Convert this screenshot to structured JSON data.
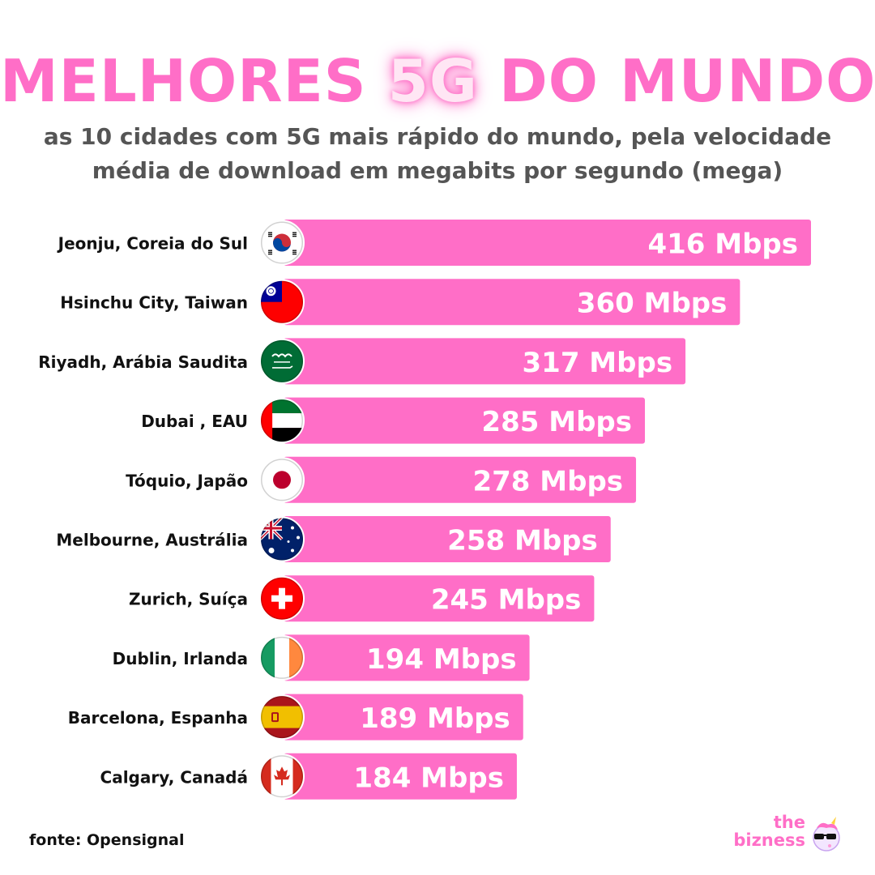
{
  "title": {
    "part1": "MELHORES ",
    "highlight": "5G",
    "part2": " DO MUNDO"
  },
  "subtitle": "as 10 cidades com 5G mais rápido do mundo, pela velocidade média de download em megabits por segundo (mega)",
  "source": "fonte: Opensignal",
  "brand": {
    "line1": "the",
    "line2": "bizness",
    "icon": "unicorn-sunglasses-icon"
  },
  "colors": {
    "bar": "#ff6ec7",
    "accent": "#ff6ec7",
    "subtitle": "#555555"
  },
  "chart_data": {
    "type": "bar",
    "orientation": "horizontal",
    "unit": "Mbps",
    "categories": [
      "Jeonju, Coreia do Sul",
      "Hsinchu City, Taiwan",
      "Riyadh, Arábia Saudita",
      "Dubai , EAU",
      "Tóquio, Japão",
      "Melbourne, Austrália",
      "Zurich, Suíça",
      "Dublin, Irlanda",
      "Barcelona, Espanha",
      "Calgary, Canadá"
    ],
    "values": [
      416,
      360,
      317,
      285,
      278,
      258,
      245,
      194,
      189,
      184
    ],
    "labels": [
      "416 Mbps",
      "360 Mbps",
      "317 Mbps",
      "285 Mbps",
      "278 Mbps",
      "258 Mbps",
      "245 Mbps",
      "194 Mbps",
      "189 Mbps",
      "184 Mbps"
    ],
    "flags": [
      "south-korea-flag-icon",
      "taiwan-flag-icon",
      "saudi-arabia-flag-icon",
      "uae-flag-icon",
      "japan-flag-icon",
      "australia-flag-icon",
      "switzerland-flag-icon",
      "ireland-flag-icon",
      "spain-flag-icon",
      "canada-flag-icon"
    ],
    "grid": false,
    "legend": "none"
  }
}
